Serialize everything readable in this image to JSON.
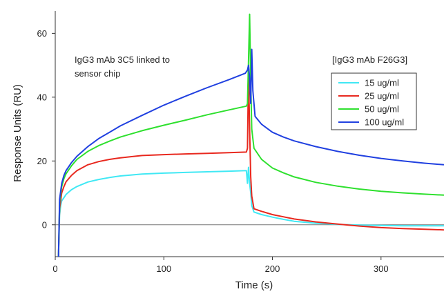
{
  "chart_data": {
    "type": "line",
    "title": "",
    "xlabel": "Time (s)",
    "ylabel": "Response Units (RU)",
    "xlim": [
      0,
      358
    ],
    "ylim": [
      -10,
      67
    ],
    "x_ticks": [
      0,
      100,
      200,
      300
    ],
    "y_ticks": [
      0,
      20,
      40,
      60
    ],
    "zero_line": true,
    "annotation": [
      "IgG3 mAb 3C5 linked to",
      "sensor chip"
    ],
    "legend_title": "[IgG3 mAb F26G3]",
    "legend_position": "right",
    "series": [
      {
        "name": "15 ug/ml",
        "color": "#40e8f4",
        "points": [
          [
            3,
            -10
          ],
          [
            4,
            3
          ],
          [
            5,
            6
          ],
          [
            6,
            7.5
          ],
          [
            8,
            8.5
          ],
          [
            10,
            9.5
          ],
          [
            15,
            11
          ],
          [
            20,
            12
          ],
          [
            30,
            13.4
          ],
          [
            40,
            14.2
          ],
          [
            50,
            14.8
          ],
          [
            60,
            15.3
          ],
          [
            80,
            15.9
          ],
          [
            100,
            16.2
          ],
          [
            120,
            16.4
          ],
          [
            140,
            16.6
          ],
          [
            160,
            16.8
          ],
          [
            176,
            17
          ],
          [
            177,
            13
          ],
          [
            178,
            18
          ],
          [
            179,
            13
          ],
          [
            180,
            10
          ],
          [
            181,
            6
          ],
          [
            183,
            4
          ],
          [
            190,
            3.2
          ],
          [
            200,
            2.4
          ],
          [
            210,
            1.7
          ],
          [
            220,
            1.1
          ],
          [
            240,
            0.5
          ],
          [
            260,
            0.1
          ],
          [
            280,
            -0.1
          ],
          [
            300,
            -0.2
          ],
          [
            320,
            -0.3
          ],
          [
            340,
            -0.3
          ],
          [
            358,
            -0.3
          ]
        ]
      },
      {
        "name": "25 ug/ml",
        "color": "#e8281e",
        "points": [
          [
            3,
            -10
          ],
          [
            4,
            5
          ],
          [
            6,
            10
          ],
          [
            8,
            12
          ],
          [
            10,
            13.5
          ],
          [
            15,
            15.5
          ],
          [
            20,
            17
          ],
          [
            30,
            18.8
          ],
          [
            40,
            19.8
          ],
          [
            50,
            20.5
          ],
          [
            60,
            21
          ],
          [
            80,
            21.7
          ],
          [
            100,
            22
          ],
          [
            120,
            22.2
          ],
          [
            140,
            22.4
          ],
          [
            160,
            22.6
          ],
          [
            176,
            22.8
          ],
          [
            177,
            24
          ],
          [
            178,
            48
          ],
          [
            179,
            30
          ],
          [
            180,
            15
          ],
          [
            181,
            9
          ],
          [
            183,
            5
          ],
          [
            190,
            4.2
          ],
          [
            200,
            3.2
          ],
          [
            210,
            2.5
          ],
          [
            220,
            1.8
          ],
          [
            240,
            0.9
          ],
          [
            260,
            0.2
          ],
          [
            280,
            -0.4
          ],
          [
            300,
            -0.9
          ],
          [
            320,
            -1.2
          ],
          [
            340,
            -1.4
          ],
          [
            358,
            -1.6
          ]
        ]
      },
      {
        "name": "50 ug/ml",
        "color": "#2ee02e",
        "points": [
          [
            3,
            -10
          ],
          [
            4,
            7
          ],
          [
            6,
            12
          ],
          [
            8,
            14.5
          ],
          [
            10,
            16
          ],
          [
            15,
            18.5
          ],
          [
            20,
            20.5
          ],
          [
            30,
            23
          ],
          [
            40,
            24.8
          ],
          [
            50,
            26.2
          ],
          [
            60,
            27.5
          ],
          [
            80,
            29.5
          ],
          [
            100,
            31.2
          ],
          [
            120,
            32.8
          ],
          [
            140,
            34.5
          ],
          [
            160,
            36
          ],
          [
            176,
            37.2
          ],
          [
            177,
            38
          ],
          [
            179,
            66
          ],
          [
            180,
            45
          ],
          [
            181,
            30
          ],
          [
            183,
            24
          ],
          [
            190,
            20.5
          ],
          [
            200,
            17.8
          ],
          [
            210,
            16.3
          ],
          [
            220,
            15
          ],
          [
            240,
            13.3
          ],
          [
            260,
            12.1
          ],
          [
            280,
            11.2
          ],
          [
            300,
            10.5
          ],
          [
            320,
            10
          ],
          [
            340,
            9.6
          ],
          [
            358,
            9.3
          ]
        ]
      },
      {
        "name": "100 ug/ml",
        "color": "#2040e0",
        "points": [
          [
            3,
            -10
          ],
          [
            4,
            8
          ],
          [
            6,
            13
          ],
          [
            8,
            15.5
          ],
          [
            10,
            17
          ],
          [
            15,
            19.5
          ],
          [
            20,
            21.5
          ],
          [
            30,
            24.5
          ],
          [
            40,
            27
          ],
          [
            50,
            29
          ],
          [
            60,
            31
          ],
          [
            80,
            34.3
          ],
          [
            100,
            37.5
          ],
          [
            120,
            40.3
          ],
          [
            140,
            43
          ],
          [
            160,
            45.5
          ],
          [
            175,
            47.5
          ],
          [
            177,
            48.5
          ],
          [
            178,
            50
          ],
          [
            179,
            46
          ],
          [
            180,
            38
          ],
          [
            181,
            55
          ],
          [
            182,
            42
          ],
          [
            184,
            34
          ],
          [
            190,
            31.5
          ],
          [
            200,
            29
          ],
          [
            210,
            27.5
          ],
          [
            220,
            26.3
          ],
          [
            240,
            24.5
          ],
          [
            260,
            23
          ],
          [
            280,
            21.8
          ],
          [
            300,
            20.8
          ],
          [
            320,
            20
          ],
          [
            340,
            19.3
          ],
          [
            358,
            18.8
          ]
        ]
      }
    ]
  }
}
